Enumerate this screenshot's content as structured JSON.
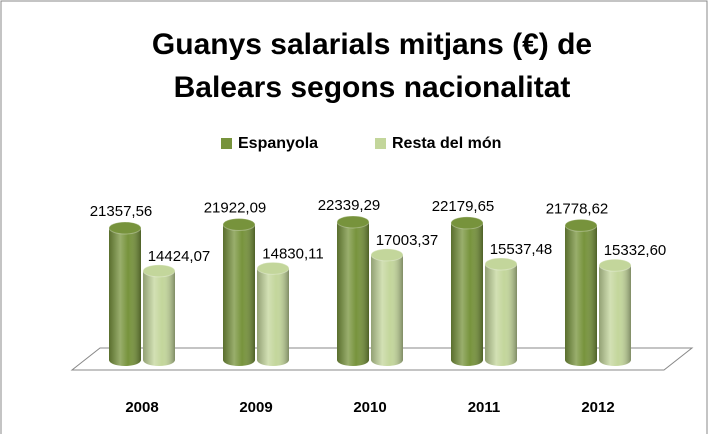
{
  "chart_data": {
    "type": "bar3d",
    "title": [
      "Guanys salarials mitjans (€) de",
      "Balears segons nacionalitat"
    ],
    "categories": [
      "2008",
      "2009",
      "2010",
      "2011",
      "2012"
    ],
    "series": [
      {
        "name": "Espanyola",
        "color": "#77933c",
        "values": [
          21357.56,
          21922.09,
          22339.29,
          22179.65,
          21778.62
        ],
        "value_labels": [
          "21357,56",
          "21922,09",
          "22339,29",
          "22179,65",
          "21778,62"
        ]
      },
      {
        "name": "Resta del món",
        "color": "#c3d69b",
        "values": [
          14424.07,
          14830.11,
          17003.37,
          15537.48,
          15332.6
        ],
        "value_labels": [
          "14424,07",
          "14830,11",
          "17003,37",
          "15537,48",
          "15332,60"
        ]
      }
    ],
    "legend": "top"
  }
}
